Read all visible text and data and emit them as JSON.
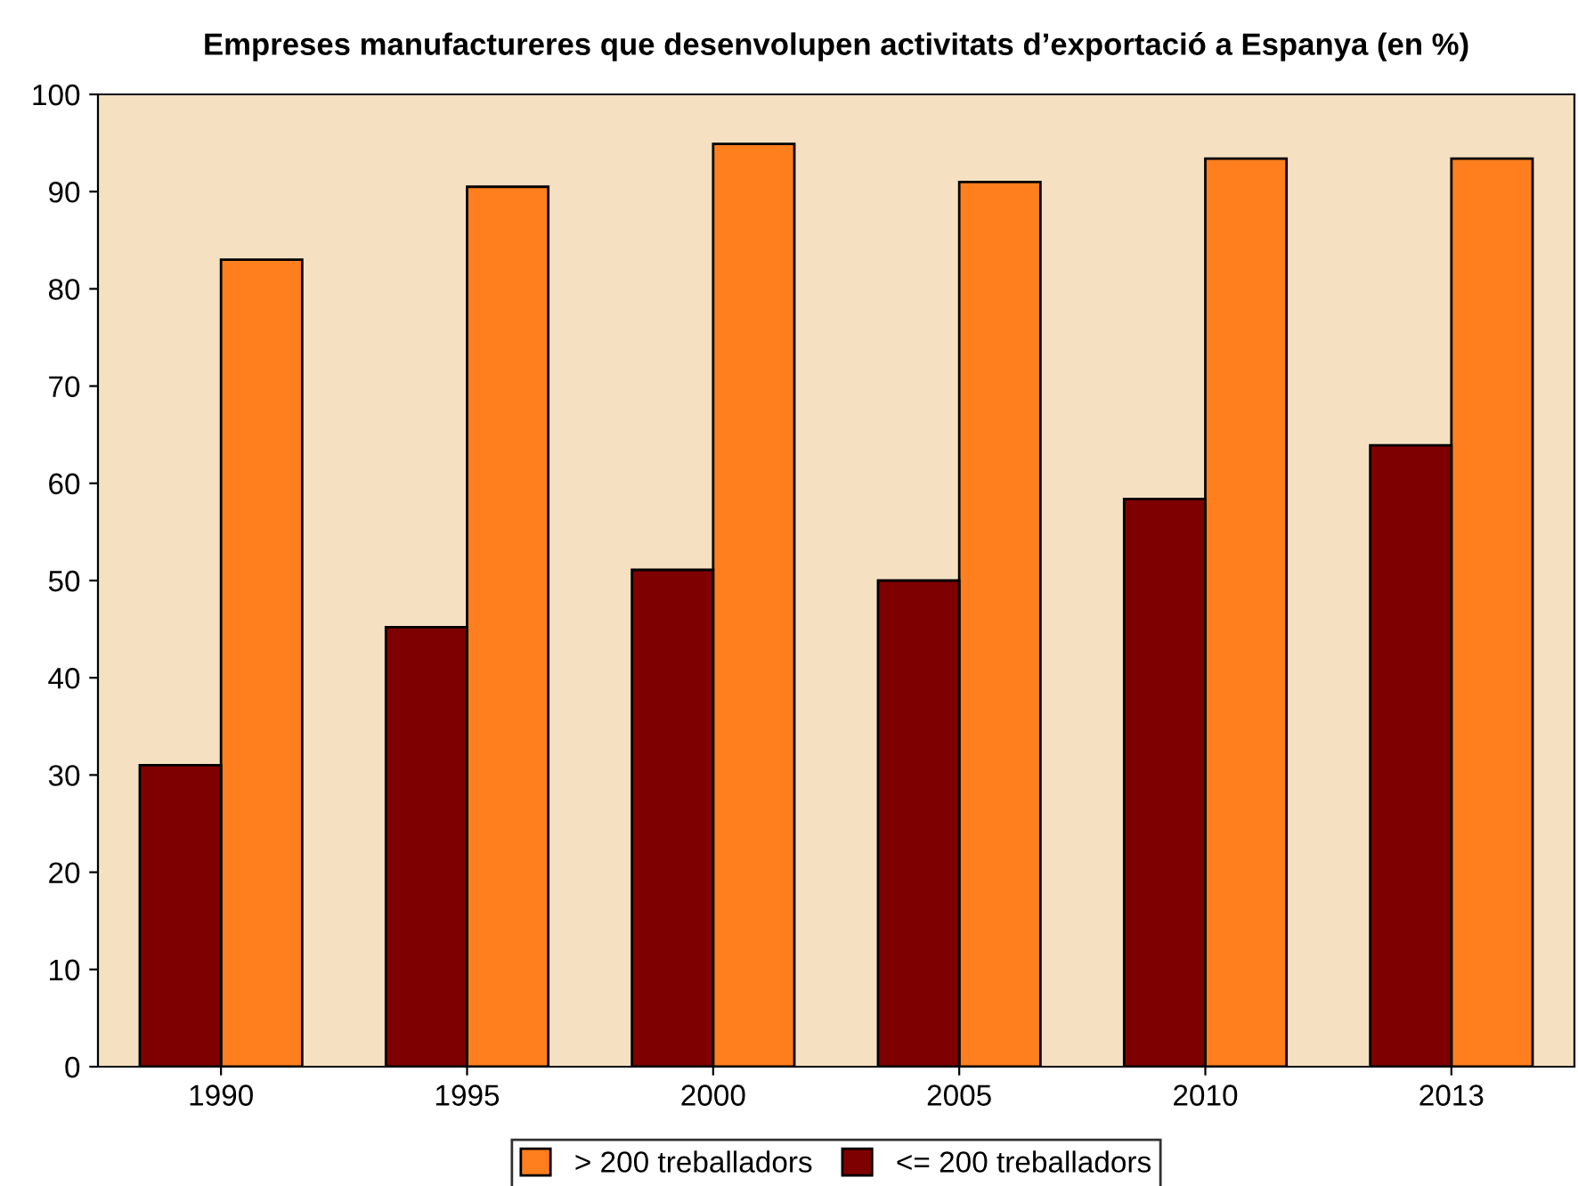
{
  "chart_data": {
    "type": "bar",
    "title": "Empreses manufactureres que desenvolupen activitats d’exportació a Espanya (en %)",
    "categories": [
      "1990",
      "1995",
      "2000",
      "2005",
      "2010",
      "2013"
    ],
    "series": [
      {
        "name": "> 200 treballadors",
        "color": "#ff7f1e",
        "values": [
          83.0,
          90.5,
          94.9,
          91.0,
          93.4,
          93.4
        ]
      },
      {
        "name": "<= 200 treballadors",
        "color": "#7f0000",
        "values": [
          31.0,
          45.2,
          51.1,
          50.0,
          58.4,
          63.9
        ]
      }
    ],
    "ylim": [
      0,
      100
    ],
    "yticks": [
      0,
      10,
      20,
      30,
      40,
      50,
      60,
      70,
      80,
      90,
      100
    ],
    "grid": false,
    "legend": "bottom"
  }
}
